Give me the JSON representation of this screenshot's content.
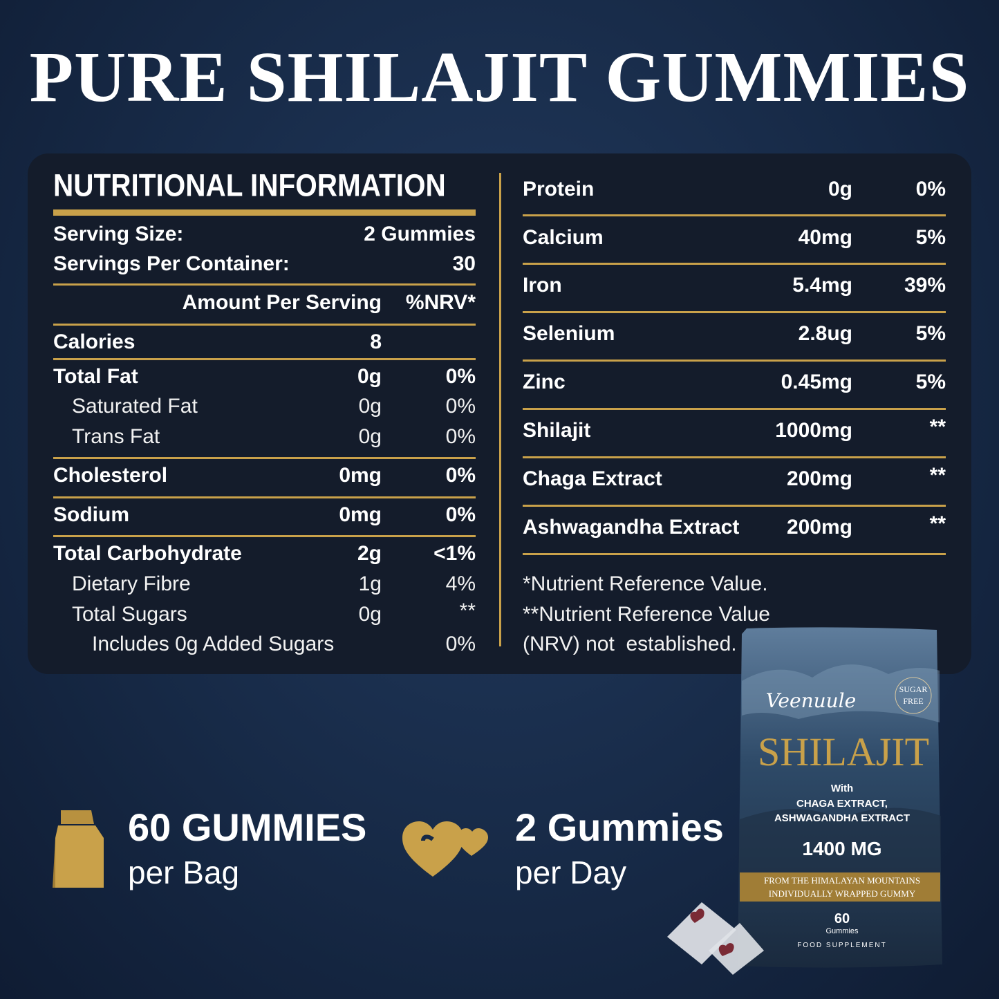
{
  "title": "PURE SHILAJIT GUMMIES",
  "nutrition": {
    "heading": "NUTRITIONAL INFORMATION",
    "serving_size": [
      "Serving Size:",
      "2 Gummies"
    ],
    "servings_per_container": [
      "Servings Per Container:",
      "30"
    ],
    "columns": [
      "Amount Per Serving",
      "%NRV*"
    ],
    "rows": [
      [
        "Calories",
        "8"
      ],
      [
        "Total Fat",
        "0g",
        "0%"
      ],
      [
        "Saturated Fat",
        "0g",
        "0%"
      ],
      [
        "Trans Fat",
        "0g",
        "0%"
      ],
      [
        "Cholesterol",
        "0mg",
        "0%"
      ],
      [
        "Sodium",
        "0mg",
        "0%"
      ],
      [
        "Total Carbohydrate",
        "2g",
        "<1%"
      ],
      [
        "Dietary Fibre",
        "1g",
        "4%"
      ],
      [
        "Total Sugars",
        "0g",
        "**"
      ],
      [
        "Includes 0g Added Sugars",
        "0%"
      ]
    ],
    "more_rows": [
      [
        "Protein",
        "0g",
        "0%"
      ],
      [
        "Calcium",
        "40mg",
        "5%"
      ],
      [
        "Iron",
        "5.4mg",
        "39%"
      ],
      [
        "Selenium",
        "2.8ug",
        "5%"
      ],
      [
        "Zinc",
        "0.45mg",
        "5%"
      ],
      [
        "Shilajit",
        "1000mg",
        "**"
      ],
      [
        "Chaga Extract",
        "200mg",
        "**"
      ],
      [
        "Ashwagandha Extract",
        "200mg",
        "**"
      ]
    ],
    "footnotes": [
      "*Nutrient Reference Value.",
      "**Nutrient Reference Value",
      "(NRV) not  established."
    ]
  },
  "features": [
    {
      "value": "60 GUMMIES",
      "label": "per Bag"
    },
    {
      "value": "2 Gummies",
      "label": "per Day"
    }
  ],
  "package": {
    "brand": "Veenuule",
    "badge": [
      "SUGAR",
      "FREE"
    ],
    "name": "SHILAJIT",
    "lines": [
      "With",
      "CHAGA EXTRACT,",
      "ASHWAGANDHA EXTRACT"
    ],
    "dose": "1400 MG",
    "banner": [
      "FROM THE HIMALAYAN MOUNTAINS",
      "INDIVIDUALLY WRAPPED GUMMY"
    ],
    "count": "60",
    "count_label": "Gummies",
    "footer": "FOOD SUPPLEMENT"
  }
}
